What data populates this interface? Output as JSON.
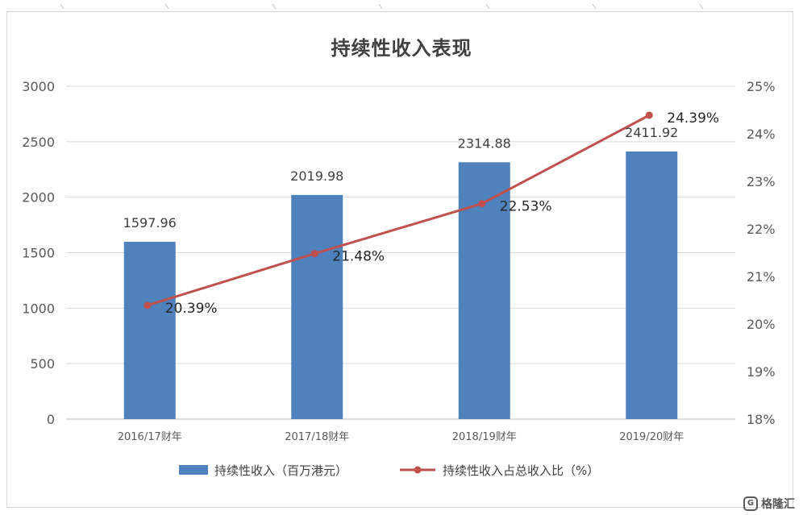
{
  "chart_data": {
    "type": "bar",
    "title": "持续性收入表现",
    "categories": [
      "2016/17财年",
      "2017/18财年",
      "2018/19财年",
      "2019/20财年"
    ],
    "series": [
      {
        "name": "持续性收入（百万港元）",
        "type": "bar",
        "axis": "left",
        "values": [
          1597.96,
          2019.98,
          2314.88,
          2411.92
        ],
        "labels": [
          "1597.96",
          "2019.98",
          "2314.88",
          "2411.92"
        ]
      },
      {
        "name": "持续性收入占总收入比（%）",
        "type": "line",
        "axis": "right",
        "values": [
          20.39,
          21.48,
          22.53,
          24.39
        ],
        "labels": [
          "20.39%",
          "21.48%",
          "22.53%",
          "24.39%"
        ]
      }
    ],
    "y_left": {
      "ylim": [
        0,
        3000
      ],
      "ticks": [
        "0",
        "500",
        "1000",
        "1500",
        "2000",
        "2500",
        "3000"
      ]
    },
    "y_right": {
      "ylim": [
        18,
        25
      ],
      "ticks": [
        "18%",
        "19%",
        "20%",
        "21%",
        "22%",
        "23%",
        "24%",
        "25%"
      ]
    },
    "grid": true,
    "legend": "bottom",
    "colors": {
      "bar": "#4f81bd",
      "line": "#c0504d",
      "grid": "#d9d9d9",
      "axis_text": "#595959",
      "label_text": "#404040"
    }
  },
  "watermark": {
    "logo_glyph": "G",
    "text": "格隆汇"
  }
}
